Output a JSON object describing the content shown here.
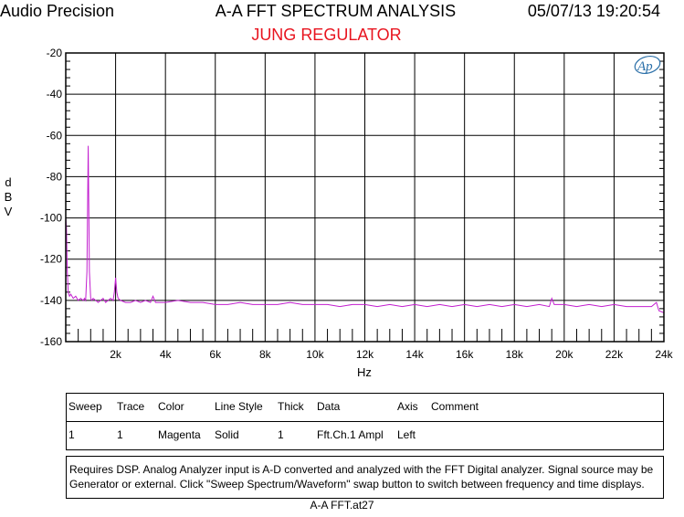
{
  "header": {
    "brand": "Audio Precision",
    "title": "A-A FFT SPECTRUM ANALYSIS",
    "timestamp": "05/07/13 19:20:54",
    "subtitle": "JUNG REGULATOR"
  },
  "colors": {
    "trace": "#c21ecf",
    "subtitle": "#e8141f",
    "logo": "#2a6fa8"
  },
  "logo_icon": "audio-precision-ap-logo",
  "chart_data": {
    "type": "line",
    "title": "A-A FFT SPECTRUM ANALYSIS",
    "subtitle": "JUNG REGULATOR",
    "xlabel": "Hz",
    "ylabel": "dBV",
    "xlim": [
      0,
      24000
    ],
    "ylim": [
      -160,
      -20
    ],
    "grid": true,
    "x_ticks": [
      2000,
      4000,
      6000,
      8000,
      10000,
      12000,
      14000,
      16000,
      18000,
      20000,
      22000,
      24000
    ],
    "x_tick_labels": [
      "2k",
      "4k",
      "6k",
      "8k",
      "10k",
      "12k",
      "14k",
      "16k",
      "18k",
      "20k",
      "22k",
      "24k"
    ],
    "y_ticks": [
      -20,
      -40,
      -60,
      -80,
      -100,
      -120,
      -140,
      -160
    ],
    "y_tick_labels": [
      "-20",
      "-40",
      "-60",
      "-80",
      "-100",
      "-120",
      "-140",
      "-160"
    ],
    "series": [
      {
        "name": "Fft.Ch.1 Ampl",
        "x": [
          0,
          30,
          60,
          100,
          150,
          200,
          300,
          400,
          500,
          600,
          700,
          750,
          800,
          850,
          900,
          950,
          1000,
          1050,
          1100,
          1200,
          1300,
          1400,
          1500,
          1600,
          1700,
          1800,
          1900,
          1950,
          2000,
          2050,
          2100,
          2200,
          2400,
          2600,
          2800,
          3000,
          3200,
          3400,
          3500,
          3600,
          3800,
          4000,
          4500,
          5000,
          5500,
          6000,
          6500,
          7000,
          7500,
          8000,
          8500,
          9000,
          9500,
          10000,
          10500,
          11000,
          11500,
          12000,
          12500,
          13000,
          13500,
          14000,
          14500,
          15000,
          15500,
          16000,
          16500,
          17000,
          17500,
          18000,
          18500,
          19000,
          19400,
          19500,
          19600,
          20000,
          20500,
          21000,
          21500,
          22000,
          22500,
          23000,
          23500,
          23700,
          23800,
          24000
        ],
        "y": [
          -100,
          -105,
          -125,
          -136,
          -138,
          -137,
          -139,
          -138,
          -140,
          -139,
          -140,
          -139,
          -140,
          -126,
          -65,
          -126,
          -139,
          -140,
          -139,
          -140,
          -141,
          -140,
          -139,
          -141,
          -140,
          -139,
          -140,
          -136,
          -129,
          -136,
          -139,
          -140,
          -141,
          -141,
          -140,
          -141,
          -140,
          -141,
          -138,
          -141,
          -141,
          -141,
          -140,
          -141,
          -141,
          -142,
          -142,
          -141,
          -142,
          -142,
          -142,
          -141,
          -142,
          -142,
          -142,
          -143,
          -142,
          -142,
          -143,
          -142,
          -143,
          -142,
          -143,
          -142,
          -143,
          -142,
          -143,
          -142,
          -143,
          -142,
          -143,
          -142,
          -143,
          -139,
          -142,
          -142,
          -143,
          -142,
          -143,
          -142,
          -143,
          -143,
          -143,
          -141,
          -145,
          -146
        ]
      }
    ]
  },
  "axis_titles": {
    "y_letters": [
      "d",
      "B",
      "V"
    ],
    "x": "Hz"
  },
  "legend_table": {
    "headers": [
      "Sweep",
      "Trace",
      "Color",
      "Line Style",
      "Thick",
      "Data",
      "Axis",
      "Comment"
    ],
    "row": [
      "1",
      "1",
      "Magenta",
      "Solid",
      "1",
      "Fft.Ch.1 Ampl",
      "Left",
      ""
    ]
  },
  "notes": {
    "line1": "Requires DSP.  Analog Analyzer input is A-D converted and analyzed with the FFT Digital analyzer.  Signal source may be",
    "line2": "Generator or external.  Click \"Sweep Spectrum/Waveform\" swap button to switch between frequency and time displays."
  },
  "footer": "A-A FFT.at27"
}
